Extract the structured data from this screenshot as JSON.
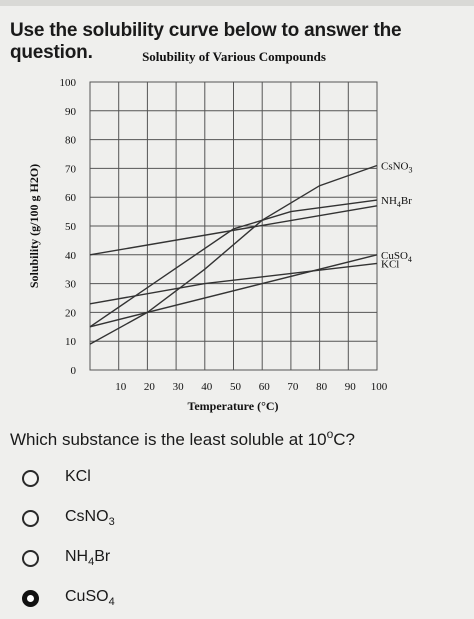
{
  "instruction": "Use the solubility curve below to answer the question.",
  "question": {
    "text": "Which substance is the least soluble at 10",
    "degree": "o",
    "unit_end": "C?"
  },
  "options": [
    {
      "base": "KCl",
      "sub": "",
      "tail": "",
      "selected": false
    },
    {
      "base": "CsNO",
      "sub": "3",
      "tail": "",
      "selected": false
    },
    {
      "base": "NH",
      "sub": "4",
      "tail": "Br",
      "selected": false
    },
    {
      "base": "CuSO",
      "sub": "4",
      "tail": "",
      "selected": true
    }
  ],
  "chart_data": {
    "type": "line",
    "title": "Solubility of Various Compounds",
    "xlabel": "Temperature (°C)",
    "ylabel": "Solubility (g/100 g H2O)",
    "xlim": [
      0,
      100
    ],
    "ylim": [
      0,
      100
    ],
    "xticks": [
      "10",
      "20",
      "30",
      "40",
      "50",
      "60",
      "70",
      "80",
      "90",
      "100"
    ],
    "yticks": [
      "0",
      "10",
      "20",
      "30",
      "40",
      "50",
      "60",
      "70",
      "80",
      "90",
      "100"
    ],
    "grid": true,
    "series": [
      {
        "name": "CsNO",
        "sub": "3",
        "tail": "",
        "color": "#333333",
        "points": [
          [
            0,
            9
          ],
          [
            20,
            20
          ],
          [
            40,
            35
          ],
          [
            60,
            52
          ],
          [
            80,
            64
          ],
          [
            100,
            71
          ]
        ]
      },
      {
        "name": "NH",
        "sub": "4",
        "tail": "Br",
        "color": "#333333",
        "points": [
          [
            0,
            15
          ],
          [
            50,
            49
          ],
          [
            70,
            55
          ],
          [
            100,
            59
          ]
        ]
      },
      {
        "name": "CuSO",
        "sub": "4",
        "tail": "",
        "color": "#333333",
        "points": [
          [
            0,
            15
          ],
          [
            100,
            40
          ]
        ]
      },
      {
        "name": "KCl",
        "sub": "",
        "tail": "",
        "color": "#333333",
        "points": [
          [
            0,
            23
          ],
          [
            40,
            30
          ],
          [
            100,
            37
          ]
        ]
      },
      {
        "name": "",
        "sub": "",
        "tail": "",
        "color": "#333333",
        "points": [
          [
            0,
            40
          ],
          [
            100,
            57
          ]
        ]
      }
    ]
  }
}
